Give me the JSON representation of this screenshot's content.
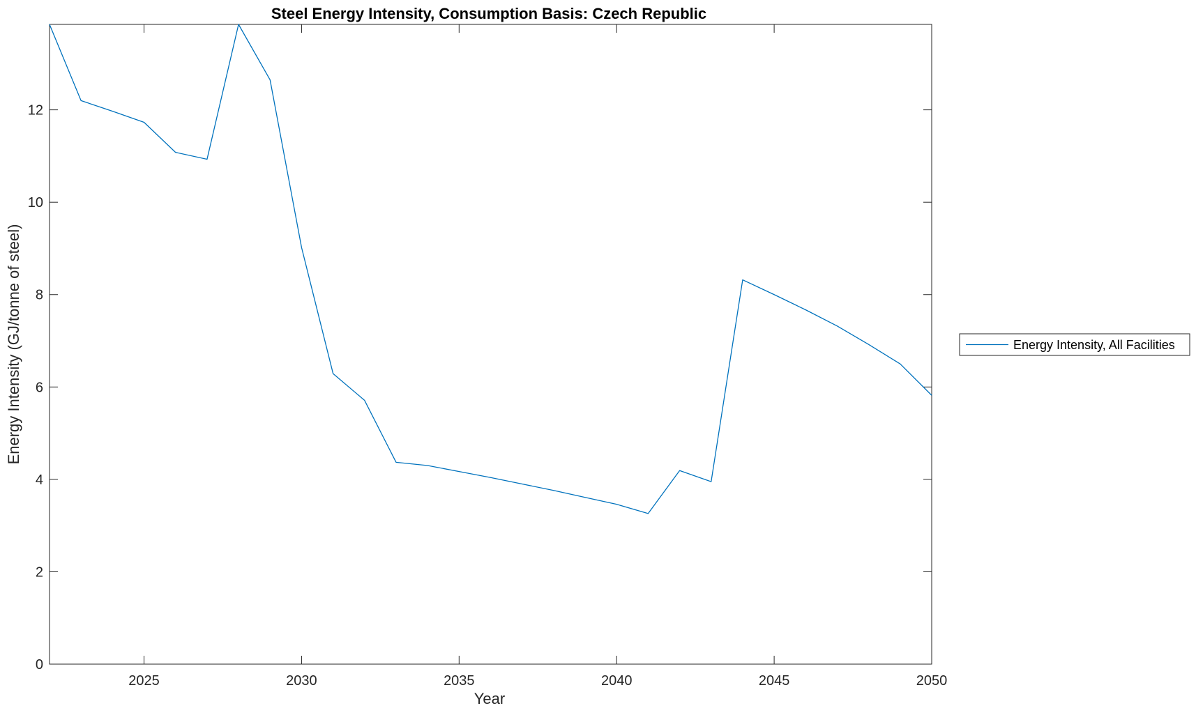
{
  "chart_data": {
    "type": "line",
    "title": "Steel Energy Intensity, Consumption Basis: Czech Republic",
    "xlabel": "Year",
    "ylabel": "Energy Intensity (GJ/tonne of steel)",
    "xlim": [
      2022,
      2050
    ],
    "ylim": [
      0,
      13.85
    ],
    "xticks": [
      "2025",
      "2030",
      "2035",
      "2040",
      "2045",
      "2050"
    ],
    "yticks": [
      "0",
      "2",
      "4",
      "6",
      "8",
      "10",
      "12"
    ],
    "grid": false,
    "legend_position": "outside-right",
    "series": [
      {
        "name": "Energy Intensity, All Facilities",
        "color": "#0072BD",
        "x": [
          2022,
          2023,
          2024,
          2025,
          2026,
          2027,
          2028,
          2029,
          2030,
          2031,
          2032,
          2033,
          2034,
          2035,
          2036,
          2037,
          2038,
          2039,
          2040,
          2041,
          2042,
          2043,
          2044,
          2045,
          2046,
          2047,
          2048,
          2049,
          2050
        ],
        "y": [
          13.85,
          12.2,
          11.97,
          11.73,
          11.08,
          10.93,
          13.85,
          12.65,
          9.02,
          6.29,
          5.71,
          4.37,
          4.3,
          4.17,
          4.04,
          3.9,
          3.76,
          3.61,
          3.46,
          3.26,
          4.19,
          3.95,
          8.32,
          8.0,
          7.67,
          7.32,
          6.92,
          6.5,
          5.82
        ]
      }
    ]
  }
}
